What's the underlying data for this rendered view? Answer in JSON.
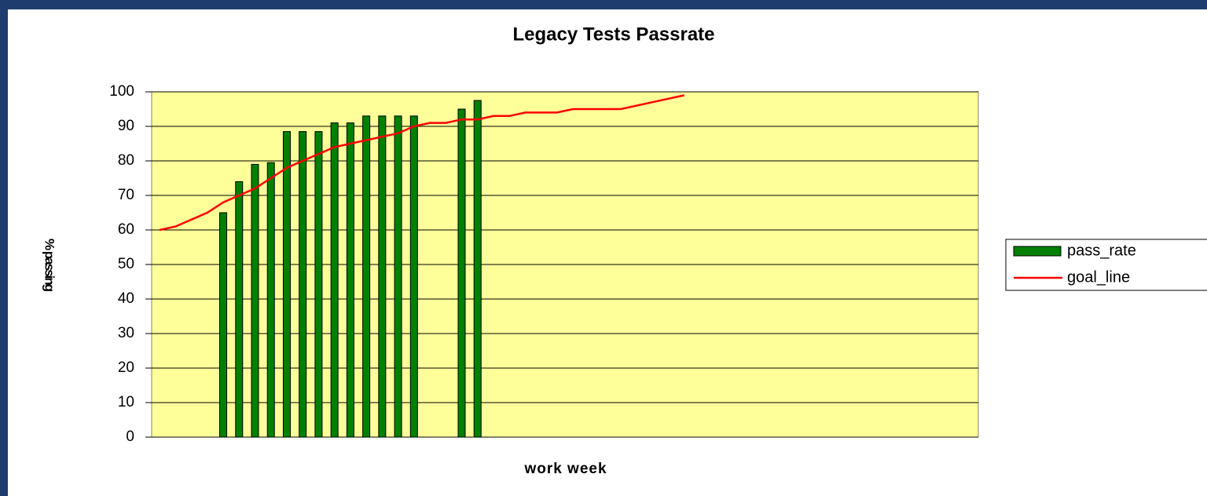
{
  "chart_data": {
    "type": "bar",
    "title": "Legacy Tests Passrate",
    "x_label": "work week",
    "y_label": "% passing",
    "categories": [
      null,
      null,
      null,
      null,
      null,
      null,
      null,
      null,
      null,
      null,
      null,
      null,
      null,
      null,
      null,
      null,
      null,
      null,
      null,
      null,
      null,
      null,
      null,
      null,
      null,
      null,
      null,
      null,
      null,
      null,
      null,
      null,
      null,
      null,
      null,
      null,
      null,
      null,
      null,
      null,
      null,
      null,
      null,
      null,
      null,
      null,
      null,
      null,
      null,
      null,
      null,
      null
    ],
    "series": [
      {
        "name": "pass_rate",
        "type": "bar",
        "color": "#008000",
        "values": [
          null,
          null,
          null,
          null,
          65,
          74,
          79,
          79.5,
          88.5,
          88.5,
          88.5,
          91,
          91,
          93,
          93,
          93,
          93,
          null,
          null,
          95,
          97.5,
          null,
          null,
          null,
          null,
          null,
          null,
          null,
          null,
          null,
          null,
          null,
          null,
          null,
          null,
          null,
          null,
          null,
          null,
          null,
          null,
          null,
          null,
          null,
          null,
          null,
          null,
          null,
          null,
          null,
          null,
          null
        ]
      },
      {
        "name": "goal_line",
        "type": "line",
        "color": "#ff0000",
        "values": [
          60,
          61,
          63,
          65,
          68,
          70,
          72,
          75,
          78,
          80,
          82,
          84,
          85,
          86,
          87,
          88,
          90,
          91,
          91,
          92,
          92,
          93,
          93,
          94,
          94,
          94,
          95,
          95,
          95,
          95,
          96,
          97,
          98,
          99,
          null,
          null,
          null,
          null,
          null,
          null,
          null,
          null,
          null,
          null,
          null,
          null,
          null,
          null,
          null,
          null,
          null,
          null
        ]
      }
    ],
    "ylim": [
      0,
      100
    ],
    "yticks": [
      0,
      10,
      20,
      30,
      40,
      50,
      60,
      70,
      80,
      90,
      100
    ],
    "grid": true,
    "plot_background": "#ffff99",
    "legend": "right"
  }
}
